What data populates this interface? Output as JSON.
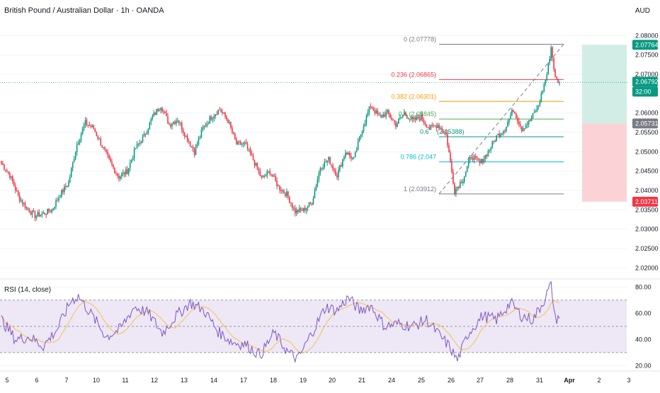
{
  "header": {
    "title": "British Pound / Australian Dollar · 1h · OANDA",
    "currency": "AUD"
  },
  "colors": {
    "up": "#089981",
    "down": "#f23645",
    "grid": "#f0f3fa",
    "rsi_line": "#7e57c2",
    "rsi_ma": "#f5c34b",
    "rsi_band": "#ede7f6",
    "target_zone": "#d1ede6",
    "stop_zone": "#fbd3d6"
  },
  "chart_data": [
    {
      "type": "candlestick",
      "instrument": "GBPAUD",
      "timeframe": "1h",
      "ylim": [
        2.0175,
        2.083
      ],
      "price_ticks": [
        "2.08000",
        "2.07500",
        "2.07000",
        "2.06000",
        "2.05500",
        "2.05000",
        "2.04500",
        "2.04000",
        "2.03500",
        "2.03000",
        "2.02500",
        "2.02000"
      ],
      "x_ticks": [
        "5",
        "6",
        "7",
        "10",
        "11",
        "12",
        "13",
        "14",
        "17",
        "18",
        "19",
        "20",
        "21",
        "24",
        "25",
        "26",
        "27",
        "28",
        "31",
        "Apr",
        "2",
        "3"
      ],
      "anchors": [
        {
          "idx": 0,
          "price": 2.047
        },
        {
          "idx": 6,
          "price": 2.044
        },
        {
          "idx": 12,
          "price": 2.0385
        },
        {
          "idx": 18,
          "price": 2.0355
        },
        {
          "idx": 24,
          "price": 2.0335
        },
        {
          "idx": 30,
          "price": 2.034
        },
        {
          "idx": 36,
          "price": 2.035
        },
        {
          "idx": 42,
          "price": 2.039
        },
        {
          "idx": 48,
          "price": 2.042
        },
        {
          "idx": 54,
          "price": 2.052
        },
        {
          "idx": 60,
          "price": 2.0575
        },
        {
          "idx": 66,
          "price": 2.056
        },
        {
          "idx": 72,
          "price": 2.0515
        },
        {
          "idx": 78,
          "price": 2.047
        },
        {
          "idx": 84,
          "price": 2.0435
        },
        {
          "idx": 90,
          "price": 2.045
        },
        {
          "idx": 96,
          "price": 2.051
        },
        {
          "idx": 102,
          "price": 2.054
        },
        {
          "idx": 108,
          "price": 2.059
        },
        {
          "idx": 114,
          "price": 2.062
        },
        {
          "idx": 120,
          "price": 2.057
        },
        {
          "idx": 126,
          "price": 2.0585
        },
        {
          "idx": 132,
          "price": 2.054
        },
        {
          "idx": 138,
          "price": 2.05
        },
        {
          "idx": 144,
          "price": 2.056
        },
        {
          "idx": 150,
          "price": 2.059
        },
        {
          "idx": 156,
          "price": 2.061
        },
        {
          "idx": 162,
          "price": 2.058
        },
        {
          "idx": 168,
          "price": 2.052
        },
        {
          "idx": 174,
          "price": 2.052
        },
        {
          "idx": 180,
          "price": 2.048
        },
        {
          "idx": 186,
          "price": 2.043
        },
        {
          "idx": 192,
          "price": 2.045
        },
        {
          "idx": 198,
          "price": 2.041
        },
        {
          "idx": 204,
          "price": 2.039
        },
        {
          "idx": 210,
          "price": 2.0345
        },
        {
          "idx": 216,
          "price": 2.035
        },
        {
          "idx": 222,
          "price": 2.037
        },
        {
          "idx": 228,
          "price": 2.046
        },
        {
          "idx": 234,
          "price": 2.048
        },
        {
          "idx": 240,
          "price": 2.044
        },
        {
          "idx": 246,
          "price": 2.05
        },
        {
          "idx": 252,
          "price": 2.048
        },
        {
          "idx": 258,
          "price": 2.056
        },
        {
          "idx": 264,
          "price": 2.062
        },
        {
          "idx": 270,
          "price": 2.059
        },
        {
          "idx": 276,
          "price": 2.06
        },
        {
          "idx": 282,
          "price": 2.057
        },
        {
          "idx": 288,
          "price": 2.06
        },
        {
          "idx": 294,
          "price": 2.058
        },
        {
          "idx": 300,
          "price": 2.059
        },
        {
          "idx": 306,
          "price": 2.056
        },
        {
          "idx": 312,
          "price": 2.057
        },
        {
          "idx": 318,
          "price": 2.0545
        },
        {
          "idx": 324,
          "price": 2.04
        },
        {
          "idx": 330,
          "price": 2.043
        },
        {
          "idx": 336,
          "price": 2.049
        },
        {
          "idx": 342,
          "price": 2.047
        },
        {
          "idx": 348,
          "price": 2.05
        },
        {
          "idx": 354,
          "price": 2.054
        },
        {
          "idx": 360,
          "price": 2.056
        },
        {
          "idx": 366,
          "price": 2.061
        },
        {
          "idx": 372,
          "price": 2.056
        },
        {
          "idx": 378,
          "price": 2.058
        },
        {
          "idx": 384,
          "price": 2.062
        },
        {
          "idx": 390,
          "price": 2.07
        },
        {
          "idx": 393,
          "price": 2.077
        },
        {
          "idx": 396,
          "price": 2.069
        },
        {
          "idx": 399,
          "price": 2.0679
        }
      ],
      "fibonacci": {
        "tool": "Fib Retracement",
        "levels": [
          {
            "label": "0 (2.07778)",
            "ratio": 0,
            "price": 2.07778,
            "color": "#787b86"
          },
          {
            "label": "0.236 (2.06865)",
            "ratio": 0.236,
            "price": 2.06865,
            "color": "#f23645"
          },
          {
            "label": "0.382 (2.06301)",
            "ratio": 0.382,
            "price": 2.06301,
            "color": "#ff9800"
          },
          {
            "label": "0.5 (2.05845)",
            "ratio": 0.5,
            "price": 2.05845,
            "color": "#4caf50"
          },
          {
            "label": "0.618 (2.05388)",
            "ratio": 0.618,
            "price": 2.05388,
            "color": "#089981"
          },
          {
            "label": "0.786 (2.04739)",
            "ratio": 0.786,
            "price": 2.04739,
            "color": "#00bcd4"
          },
          {
            "label": "1 (2.03912)",
            "ratio": 1,
            "price": 2.03912,
            "color": "#787b86"
          }
        ],
        "displayed_labels": [
          "0 (2.07778)",
          "0.236 (2.06865)",
          "0.382 (2.06301)",
          "0.5 (2.05845)",
          "0.6",
          "(2.05388)",
          "0.786 (2.047",
          "1 (2.03912)"
        ]
      },
      "position": {
        "target": 2.07764,
        "entry": 2.05731,
        "stop": 2.03711
      },
      "last_price": 2.06792,
      "price_badges": [
        {
          "label": "2.07764",
          "color": "#089981"
        },
        {
          "label": "2.06792",
          "color": "#089981"
        },
        {
          "label": "32:00",
          "color": "#089981"
        },
        {
          "label": "2.05731",
          "color": "#787b86"
        },
        {
          "label": "2.03711",
          "color": "#f23645"
        }
      ]
    },
    {
      "type": "line",
      "indicator": "RSI",
      "legend": "RSI (14, close)",
      "ylim": [
        17,
        85
      ],
      "y_ticks": [
        "80.00",
        "60.00",
        "40.00",
        "20.00"
      ],
      "bands": {
        "upper": 70,
        "middle": 50,
        "lower": 30
      },
      "rsi_anchors": [
        {
          "idx": 0,
          "value": 55
        },
        {
          "idx": 10,
          "value": 40
        },
        {
          "idx": 20,
          "value": 42
        },
        {
          "idx": 30,
          "value": 35
        },
        {
          "idx": 40,
          "value": 48
        },
        {
          "idx": 50,
          "value": 70
        },
        {
          "idx": 55,
          "value": 73
        },
        {
          "idx": 65,
          "value": 58
        },
        {
          "idx": 75,
          "value": 42
        },
        {
          "idx": 85,
          "value": 48
        },
        {
          "idx": 95,
          "value": 65
        },
        {
          "idx": 105,
          "value": 60
        },
        {
          "idx": 115,
          "value": 45
        },
        {
          "idx": 125,
          "value": 58
        },
        {
          "idx": 135,
          "value": 68
        },
        {
          "idx": 145,
          "value": 62
        },
        {
          "idx": 155,
          "value": 46
        },
        {
          "idx": 165,
          "value": 38
        },
        {
          "idx": 175,
          "value": 36
        },
        {
          "idx": 185,
          "value": 28
        },
        {
          "idx": 195,
          "value": 45
        },
        {
          "idx": 205,
          "value": 30
        },
        {
          "idx": 212,
          "value": 25
        },
        {
          "idx": 222,
          "value": 45
        },
        {
          "idx": 232,
          "value": 65
        },
        {
          "idx": 240,
          "value": 62
        },
        {
          "idx": 248,
          "value": 72
        },
        {
          "idx": 256,
          "value": 62
        },
        {
          "idx": 264,
          "value": 66
        },
        {
          "idx": 274,
          "value": 50
        },
        {
          "idx": 284,
          "value": 52
        },
        {
          "idx": 294,
          "value": 50
        },
        {
          "idx": 304,
          "value": 55
        },
        {
          "idx": 314,
          "value": 42
        },
        {
          "idx": 320,
          "value": 35
        },
        {
          "idx": 326,
          "value": 24
        },
        {
          "idx": 334,
          "value": 45
        },
        {
          "idx": 344,
          "value": 58
        },
        {
          "idx": 354,
          "value": 55
        },
        {
          "idx": 364,
          "value": 68
        },
        {
          "idx": 372,
          "value": 58
        },
        {
          "idx": 380,
          "value": 55
        },
        {
          "idx": 388,
          "value": 70
        },
        {
          "idx": 393,
          "value": 82
        },
        {
          "idx": 396,
          "value": 55
        },
        {
          "idx": 399,
          "value": 58
        }
      ]
    }
  ]
}
